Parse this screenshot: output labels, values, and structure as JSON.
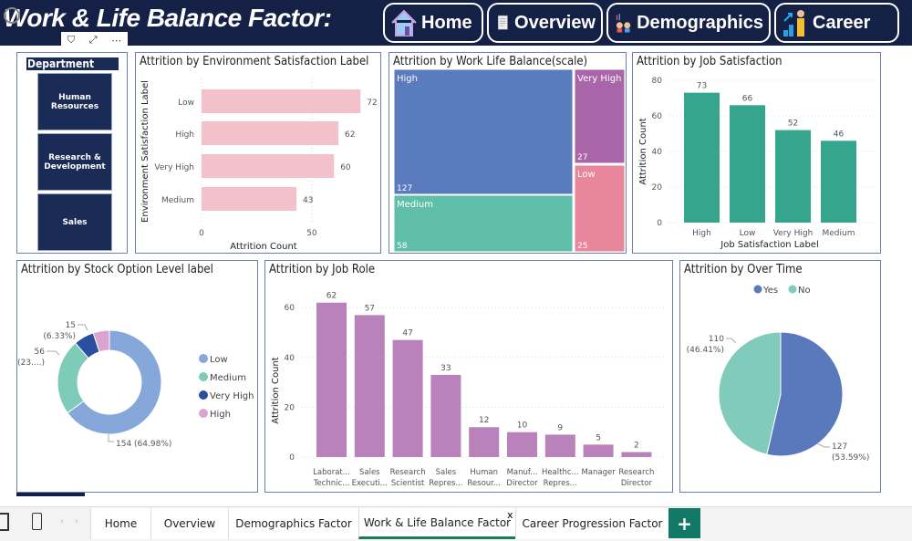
{
  "header": {
    "title": "Work & Life Balance Factor:",
    "nav": [
      {
        "label": "Home",
        "icon": "house-icon"
      },
      {
        "label": "Overview",
        "icon": "document-icon"
      },
      {
        "label": "Demographics",
        "icon": "people-chart-icon"
      },
      {
        "label": "Career",
        "icon": "career-growth-icon"
      }
    ]
  },
  "visual_tools": {
    "filter": "filter-icon",
    "focus": "focus-mode-icon",
    "more": "⋯"
  },
  "slicer": {
    "title": "Department",
    "items": [
      "Human Resources",
      "Research & Development",
      "Sales"
    ]
  },
  "chart_data": [
    {
      "id": "env",
      "type": "bar",
      "orientation": "horizontal",
      "title": "Attrition by Environment Satisfaction Label",
      "xlabel": "Attrition Count",
      "ylabel": "Environment Satisfaction Label",
      "categories": [
        "Low",
        "High",
        "Very High",
        "Medium"
      ],
      "values": [
        72,
        62,
        60,
        43
      ],
      "xticks": [
        0,
        50
      ],
      "color": "#f2c1ca"
    },
    {
      "id": "treemap",
      "type": "treemap",
      "title": "Attrition by Work Life Balance(scale)",
      "categories": [
        "High",
        "Medium",
        "Very High",
        "Low"
      ],
      "values": [
        127,
        58,
        27,
        25
      ],
      "colors": [
        "#5b7bbf",
        "#5fbfa9",
        "#a865a8",
        "#e8879c"
      ]
    },
    {
      "id": "jobsat",
      "type": "bar",
      "title": "Attrition by Job Satisfaction",
      "xlabel": "Job Satisfaction Label",
      "ylabel": "Attrition Count",
      "categories": [
        "High",
        "Low",
        "Very High",
        "Medium"
      ],
      "values": [
        73,
        66,
        52,
        46
      ],
      "yticks": [
        0,
        20,
        40,
        60,
        80
      ],
      "color": "#35a58d"
    },
    {
      "id": "stock",
      "type": "pie",
      "donut": true,
      "title": "Attrition by Stock Option Level label",
      "categories": [
        "Low",
        "Medium",
        "Very High",
        "High"
      ],
      "values": [
        154,
        56,
        15,
        12
      ],
      "labels": [
        "154 (64.98%)",
        "56\n(23....)",
        "15\n(6.33%)",
        ""
      ],
      "colors": [
        "#85a7d9",
        "#7fcbb9",
        "#2b4ea0",
        "#d9a5d0"
      ],
      "legend": "right"
    },
    {
      "id": "jobrole",
      "type": "bar",
      "title": "Attrition by Job Role",
      "ylabel": "Attrition Count",
      "categories": [
        [
          "Laborat...",
          "Technic..."
        ],
        [
          "Sales",
          "Executi..."
        ],
        [
          "Research",
          "Scientist"
        ],
        [
          "Sales",
          "Repres..."
        ],
        [
          "Human",
          "Resour..."
        ],
        [
          "Manuf...",
          "Director"
        ],
        [
          "Healthc...",
          "Repres..."
        ],
        [
          "Manager",
          ""
        ],
        [
          "Research",
          "Director"
        ]
      ],
      "values": [
        62,
        57,
        47,
        33,
        12,
        10,
        9,
        5,
        2
      ],
      "yticks": [
        0,
        20,
        40,
        60
      ],
      "color": "#b982ba"
    },
    {
      "id": "overtime",
      "type": "pie",
      "title": "Attrition by Over Time",
      "categories": [
        "Yes",
        "No"
      ],
      "values": [
        127,
        110
      ],
      "labels": [
        "127\n(53.59%)",
        "110\n(46.41%)"
      ],
      "colors": [
        "#5a79bd",
        "#80cbbb"
      ],
      "legend": "top"
    }
  ],
  "tabs": {
    "items": [
      "Home",
      "Overview",
      "Demographics Factor",
      "Work & Life Balance Factor",
      "Career Progression Factor"
    ],
    "active": "Work & Life Balance Factor",
    "close": "x",
    "add": "+"
  }
}
